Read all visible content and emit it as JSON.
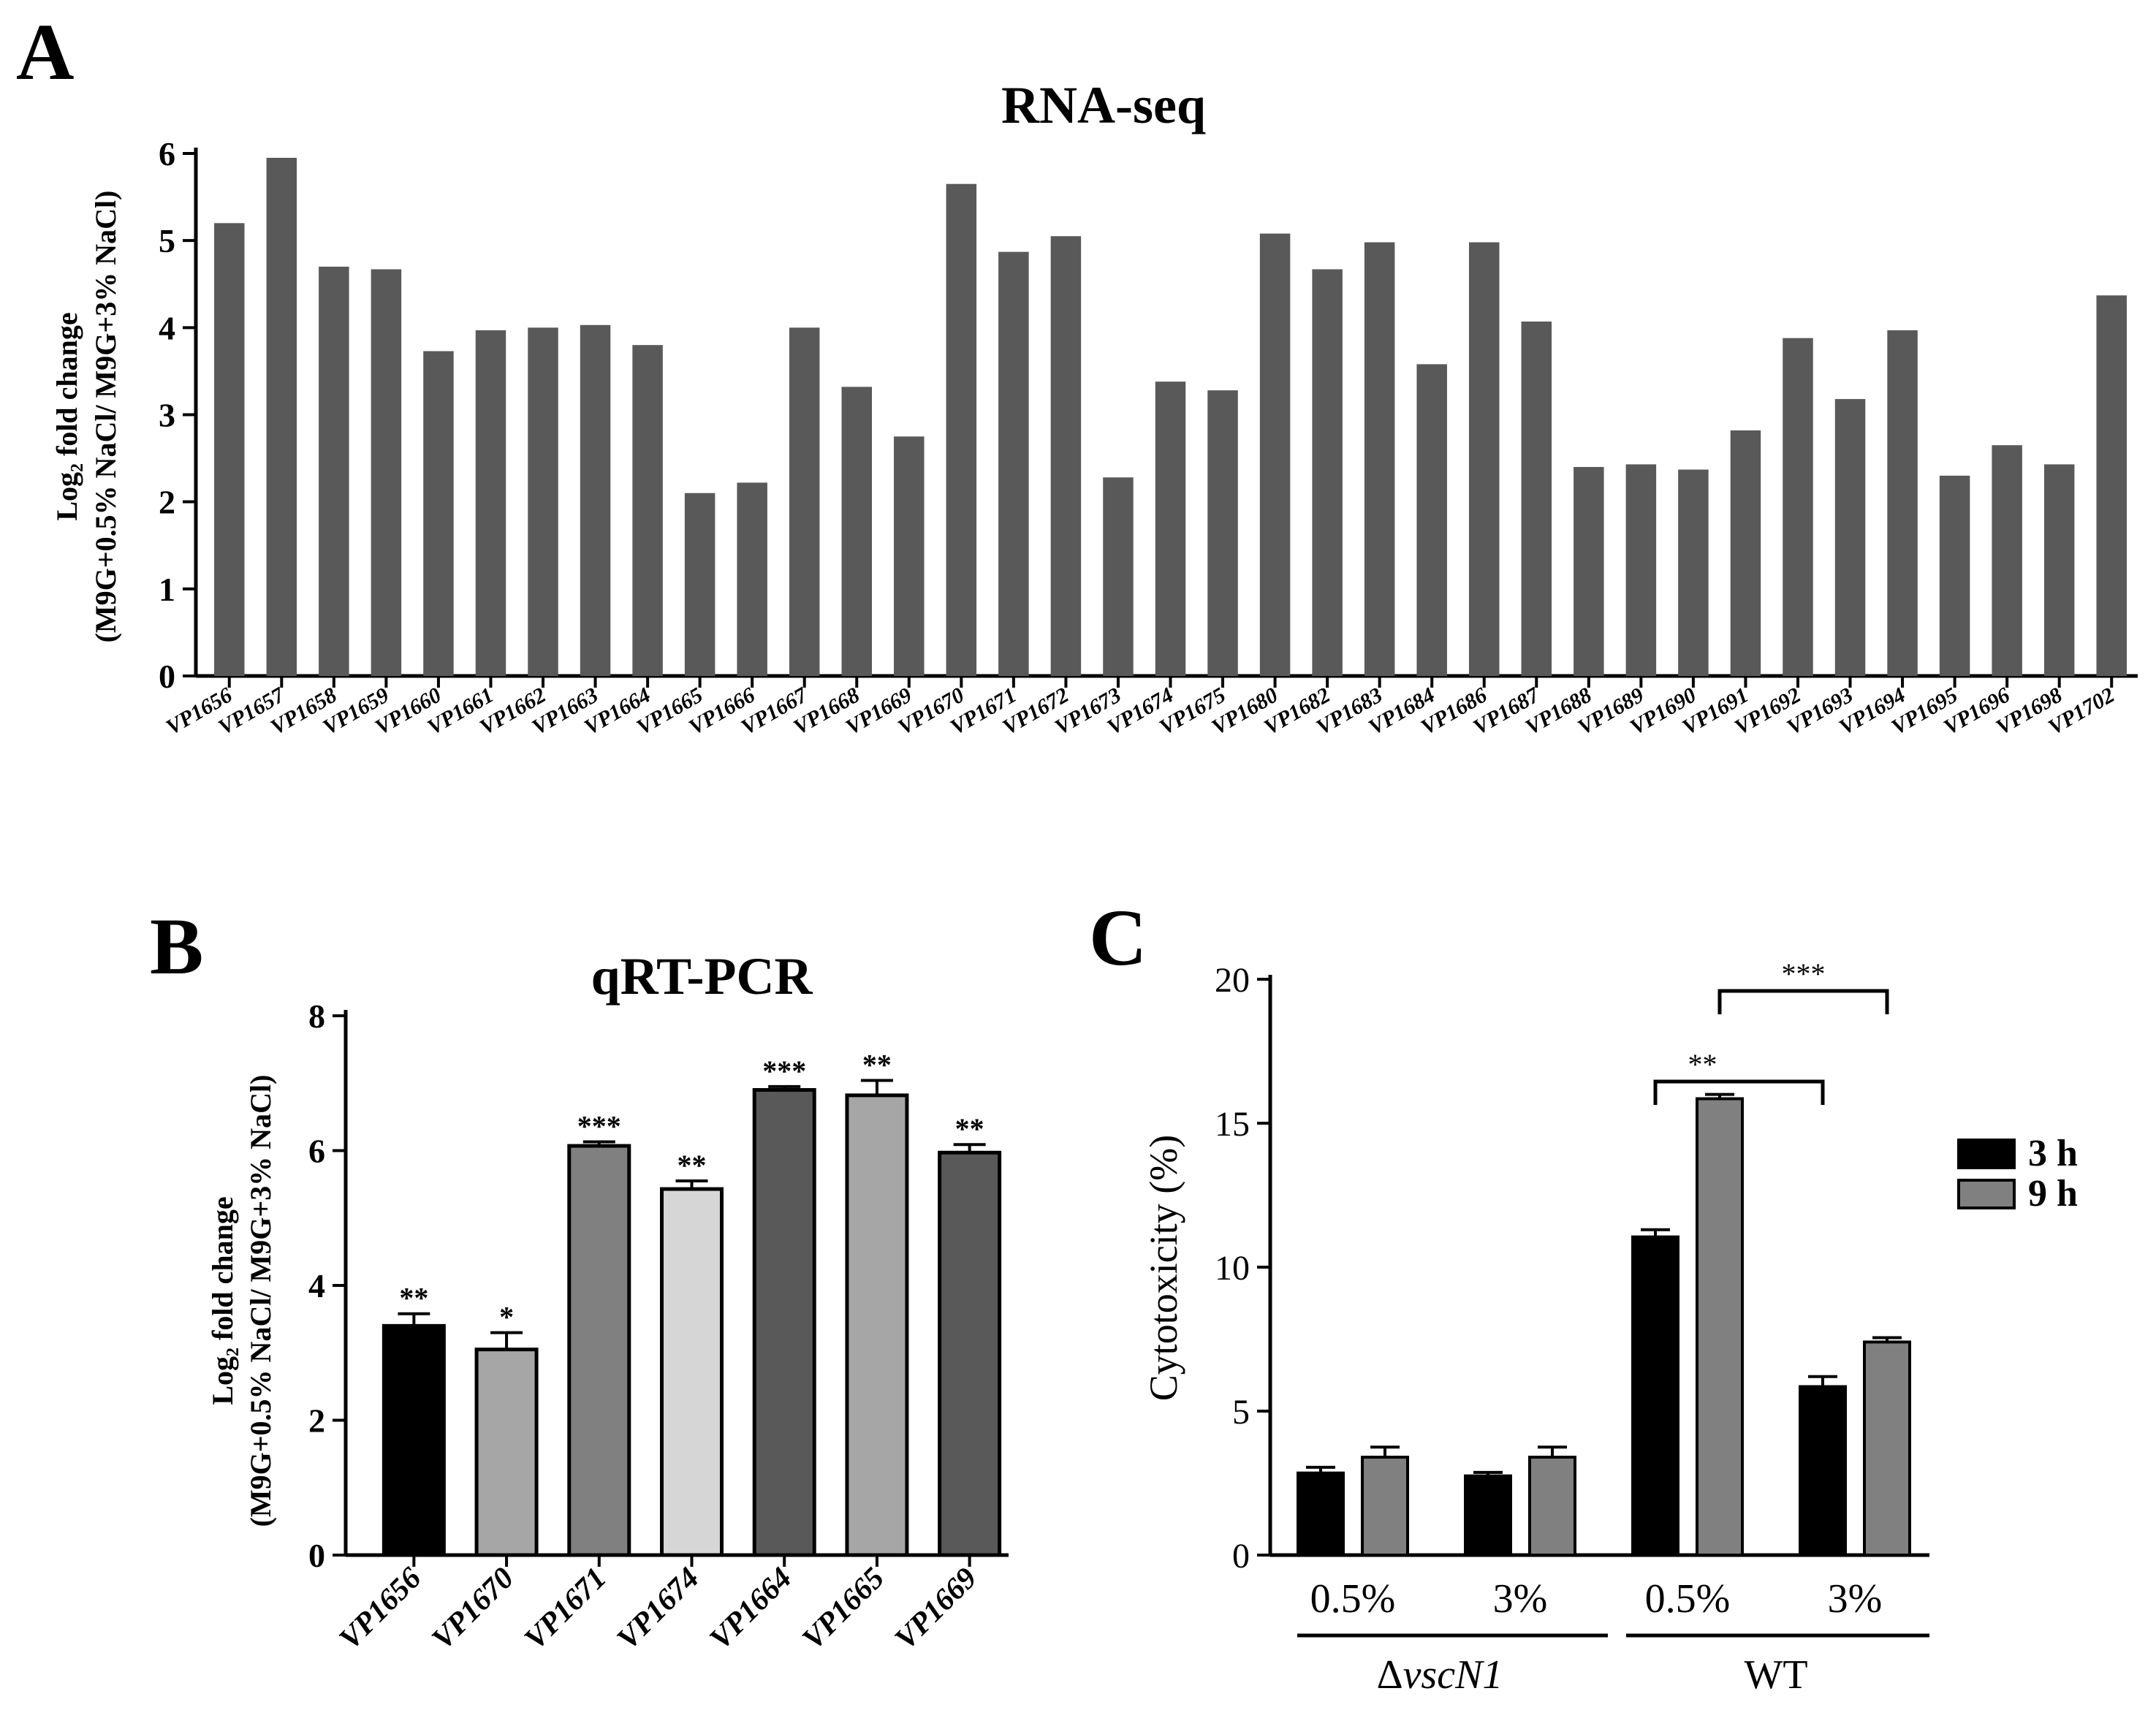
{
  "chart_data": [
    {
      "panel": "A",
      "type": "bar",
      "title": "RNA-seq",
      "ylabel_line1": "Log₂ fold change",
      "ylabel_line2": "(M9G+0.5% NaCl/ M9G+3% NaCl)",
      "ylim": [
        0,
        6
      ],
      "yticks": [
        "0",
        "1",
        "2",
        "3",
        "4",
        "5",
        "6"
      ],
      "categories": [
        "VP1656",
        "VP1657",
        "VP1658",
        "VP1659",
        "VP1660",
        "VP1661",
        "VP1662",
        "VP1663",
        "VP1664",
        "VP1665",
        "VP1666",
        "VP1667",
        "VP1668",
        "VP1669",
        "VP1670",
        "VP1671",
        "VP1672",
        "VP1673",
        "VP1674",
        "VP1675",
        "VP1680",
        "VP1682",
        "VP1683",
        "VP1684",
        "VP1686",
        "VP1687",
        "VP1688",
        "VP1689",
        "VP1690",
        "VP1691",
        "VP1692",
        "VP1693",
        "VP1694",
        "VP1695",
        "VP1696",
        "VP1698",
        "VP1702"
      ],
      "values": [
        5.2,
        5.95,
        4.7,
        4.67,
        3.73,
        3.97,
        4.0,
        4.03,
        3.8,
        2.1,
        2.22,
        4.0,
        3.32,
        2.75,
        5.65,
        4.87,
        5.05,
        2.28,
        3.38,
        3.28,
        5.08,
        4.67,
        4.98,
        3.58,
        4.98,
        4.07,
        2.4,
        2.43,
        2.37,
        2.82,
        3.88,
        3.18,
        3.97,
        2.3,
        2.65,
        2.43,
        4.37
      ],
      "color": "#595959"
    },
    {
      "panel": "B",
      "type": "bar",
      "title": "qRT-PCR",
      "ylabel_line1": "Log₂ fold change",
      "ylabel_line2": "(M9G+0.5% NaCl/ M9G+3% NaCl)",
      "ylim": [
        0,
        8
      ],
      "yticks": [
        "0",
        "2",
        "4",
        "6",
        "8"
      ],
      "categories": [
        "VP1656",
        "VP1670",
        "VP1671",
        "VP1674",
        "VP1664",
        "VP1665",
        "VP1669"
      ],
      "values": [
        3.4,
        3.05,
        6.07,
        5.43,
        6.9,
        6.82,
        5.97
      ],
      "errors": [
        0.18,
        0.25,
        0.06,
        0.12,
        0.05,
        0.22,
        0.12
      ],
      "significance": [
        "**",
        "*",
        "***",
        "**",
        "***",
        "**",
        "**"
      ],
      "colors": [
        "#000000",
        "#a6a6a6",
        "#808080",
        "#d6d6d6",
        "#595959",
        "#a6a6a6",
        "#595959"
      ]
    },
    {
      "panel": "C",
      "type": "bar",
      "ylabel": "Cytotoxicity (%)",
      "ylim": [
        0,
        20
      ],
      "yticks": [
        "0",
        "5",
        "10",
        "15",
        "20"
      ],
      "categories": [
        "0.5%",
        "3%",
        "0.5%",
        "3%"
      ],
      "groups": [
        {
          "name": "ΔvscN1",
          "delta": "Δ",
          "label": "vscN1"
        },
        {
          "name": "WT",
          "delta": "",
          "label": "WT"
        }
      ],
      "series": [
        {
          "name": "3 h",
          "values": [
            2.85,
            2.75,
            11.05,
            5.85
          ],
          "errors": [
            0.2,
            0.12,
            0.25,
            0.35
          ],
          "color": "#000000"
        },
        {
          "name": "9 h",
          "values": [
            3.4,
            3.4,
            15.85,
            7.4
          ],
          "errors": [
            0.35,
            0.35,
            0.15,
            0.15
          ],
          "color": "#808080"
        }
      ],
      "brackets": [
        {
          "label": "**",
          "from": "WT 0.5% 3 h",
          "to": "WT 3% 3 h"
        },
        {
          "label": "***",
          "from": "WT 0.5% 9 h",
          "to": "WT 3% 9 h"
        }
      ],
      "legend_position": "right"
    }
  ],
  "panel_labels": [
    "A",
    "B",
    "C"
  ]
}
